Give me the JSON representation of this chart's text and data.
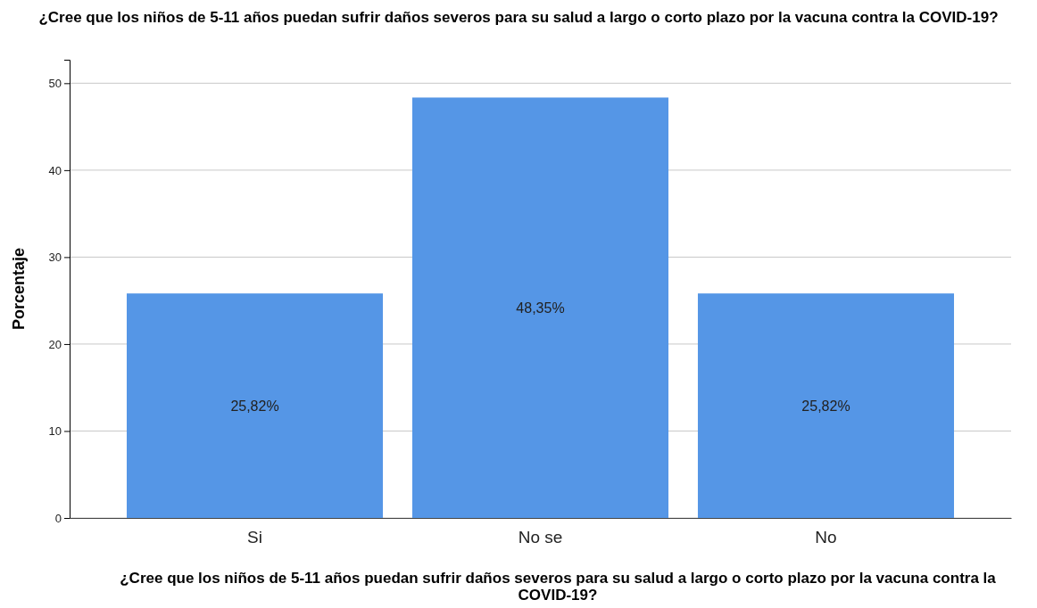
{
  "chart_data": {
    "type": "bar",
    "title": "¿Cree que los niños de 5-11 años puedan sufrir daños severos para su salud a largo o corto plazo por la vacuna contra la COVID-19?",
    "xlabel": "¿Cree que los niños de 5-11 años puedan sufrir daños severos para su salud a largo o corto plazo por la vacuna contra la COVID-19?",
    "ylabel": "Porcentaje",
    "categories": [
      "Si",
      "No se",
      "No"
    ],
    "values": [
      25.82,
      48.35,
      25.82
    ],
    "value_labels": [
      "25,82%",
      "48,35%",
      "25,82%"
    ],
    "color": "#5596e6",
    "ylim": [
      0,
      52.7
    ],
    "yticks": [
      0,
      10,
      20,
      30,
      40,
      50
    ],
    "grid": "y"
  }
}
